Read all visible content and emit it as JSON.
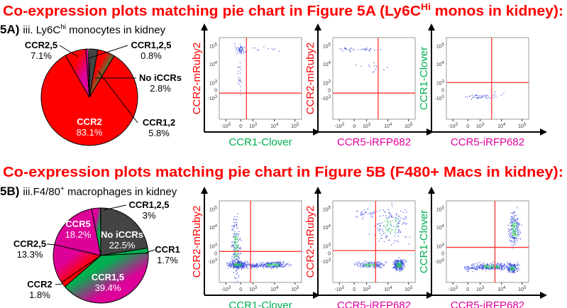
{
  "section_a": {
    "title": "Co-expression plots matching pie chart in Figure 5A (Ly6C",
    "title_sup": "Hi",
    "title_end": " monos in kidney):",
    "panel_label": "5A)",
    "subtitle_pre": "iii. Ly6C",
    "subtitle_sup": "hi",
    "subtitle_end": " monocytes in kidney"
  },
  "section_b": {
    "title": "Co-expression plots matching pie chart in Figure 5B (F480+ Macs in kidney):",
    "panel_label": "5B)",
    "subtitle_pre": "iii.F4/80",
    "subtitle_sup": "+",
    "subtitle_end": " macrophages in kidney"
  },
  "chart_data": [
    {
      "type": "pie",
      "title": "Ly6Chi monocytes in kidney",
      "slices": [
        {
          "label": "No iCCRs",
          "value": 2.8,
          "text": "2.8%",
          "color": "#444444",
          "color2": "#444444"
        },
        {
          "label": "CCR1,2",
          "value": 5.8,
          "text": "5.8%",
          "color": "#ff0000",
          "color2": "#00b050"
        },
        {
          "label": "CCR2",
          "value": 83.1,
          "text": "83.1%",
          "color": "#ff0000",
          "color2": "#ff0000"
        },
        {
          "label": "CCR2,5",
          "value": 7.1,
          "text": "7.1%",
          "color": "#ff0000",
          "color2": "#dd0099"
        },
        {
          "label": "CCR1,2,5",
          "value": 0.8,
          "text": "0.8%",
          "color": "#dd0099",
          "color2": "#dd0099"
        }
      ]
    },
    {
      "type": "pie",
      "title": "F4/80+ macrophages in kidney",
      "slices": [
        {
          "label": "No iCCRs",
          "value": 22.5,
          "text": "22.5%",
          "color": "#444444",
          "color2": "#444444"
        },
        {
          "label": "CCR1",
          "value": 1.7,
          "text": "1.7%",
          "color": "#00b050",
          "color2": "#00b050"
        },
        {
          "label": "CCR1,5",
          "value": 39.4,
          "text": "39.4%",
          "color": "#00b050",
          "color2": "#dd0099"
        },
        {
          "label": "CCR2",
          "value": 1.8,
          "text": "1.8%",
          "color": "#ff0000",
          "color2": "#ff0000"
        },
        {
          "label": "CCR2,5",
          "value": 13.3,
          "text": "13.3%",
          "color": "#dd0099",
          "color2": "#ff0000"
        },
        {
          "label": "CCR5",
          "value": 18.2,
          "text": "18.2%",
          "color": "#dd0099",
          "color2": "#dd0099"
        },
        {
          "label": "CCR1,2,5",
          "value": 3,
          "text": "3%",
          "color": "#dd0099",
          "color2": "#00b050"
        }
      ]
    },
    {
      "type": "scatter",
      "xlabel": "CCR1-Clover",
      "ylabel": "CCR2-mRuby2",
      "xcolor": "#00b050",
      "ycolor": "#ff0000",
      "section": "A"
    },
    {
      "type": "scatter",
      "xlabel": "CCR5-iRFP682",
      "ylabel": "CCR2-mRuby2",
      "xcolor": "#dd0099",
      "ycolor": "#ff0000",
      "section": "A"
    },
    {
      "type": "scatter",
      "xlabel": "CCR5-iRFP682",
      "ylabel": "CCR1-Clover",
      "xcolor": "#dd0099",
      "ycolor": "#00b050",
      "section": "A"
    },
    {
      "type": "scatter",
      "xlabel": "CCR1-Clover",
      "ylabel": "CCR2-mRuby2",
      "xcolor": "#00b050",
      "ycolor": "#ff0000",
      "section": "B"
    },
    {
      "type": "scatter",
      "xlabel": "CCR5-iRFP682",
      "ylabel": "CCR2-mRuby2",
      "xcolor": "#dd0099",
      "ycolor": "#ff0000",
      "section": "B"
    },
    {
      "type": "scatter",
      "xlabel": "CCR5-iRFP682",
      "ylabel": "CCR1-Clover",
      "xcolor": "#dd0099",
      "ycolor": "#00b050",
      "section": "B"
    }
  ],
  "axis_ticks": {
    "y": [
      [
        "10",
        "5"
      ],
      [
        "10",
        "4"
      ],
      [
        "10",
        "3"
      ],
      [
        "0",
        ""
      ],
      [
        "-10",
        "3"
      ]
    ],
    "x": [
      [
        "-10",
        "3"
      ],
      [
        "0",
        ""
      ],
      [
        "10",
        "3"
      ],
      [
        "10",
        "4"
      ],
      [
        "10",
        "5"
      ]
    ]
  },
  "gate_color": "#ff3333"
}
